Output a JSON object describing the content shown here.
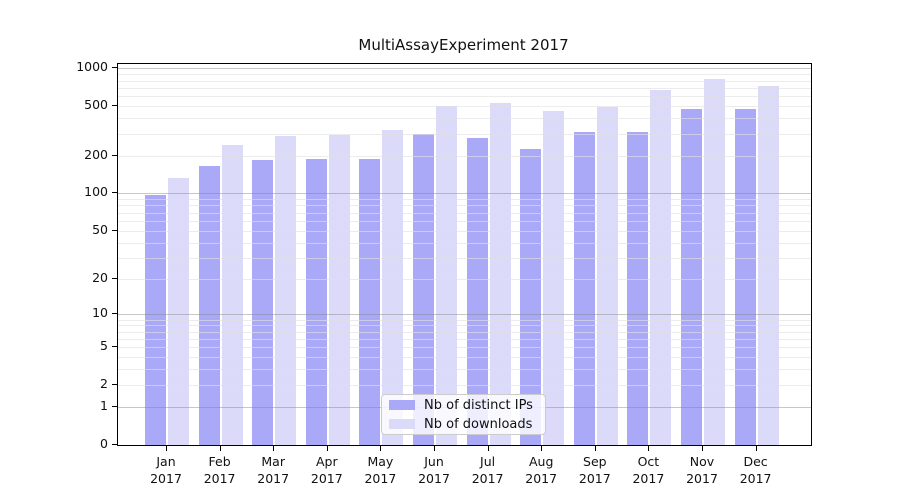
{
  "title": "MultiAssayExperiment 2017",
  "colors": {
    "ips_bar": "#aaa9f8",
    "downloads_bar": "#dbdaf9",
    "axis": "#000000",
    "legend_border": "#cccccc"
  },
  "legend": {
    "items": [
      {
        "label": "Nb of distinct IPs",
        "series": "ips"
      },
      {
        "label": "Nb of downloads",
        "series": "downloads"
      }
    ]
  },
  "chart_data": {
    "type": "bar",
    "title": "MultiAssayExperiment 2017",
    "xlabel": "",
    "ylabel": "",
    "scale": "log10(value+1)",
    "grid": "on",
    "legend_position": "bottom-center-inside",
    "year": "2017",
    "categories": [
      "Jan",
      "Feb",
      "Mar",
      "Apr",
      "May",
      "Jun",
      "Jul",
      "Aug",
      "Sep",
      "Oct",
      "Nov",
      "Dec"
    ],
    "series": [
      {
        "name": "Nb of distinct IPs",
        "values": [
          97,
          165,
          184,
          188,
          190,
          300,
          280,
          226,
          308,
          310,
          471,
          476
        ]
      },
      {
        "name": "Nb of downloads",
        "values": [
          132,
          245,
          288,
          295,
          322,
          505,
          526,
          457,
          495,
          670,
          820,
          725
        ]
      }
    ],
    "yticks": [
      0,
      1,
      2,
      5,
      10,
      20,
      50,
      100,
      200,
      500,
      1000
    ],
    "ylim": [
      0,
      1000
    ]
  }
}
